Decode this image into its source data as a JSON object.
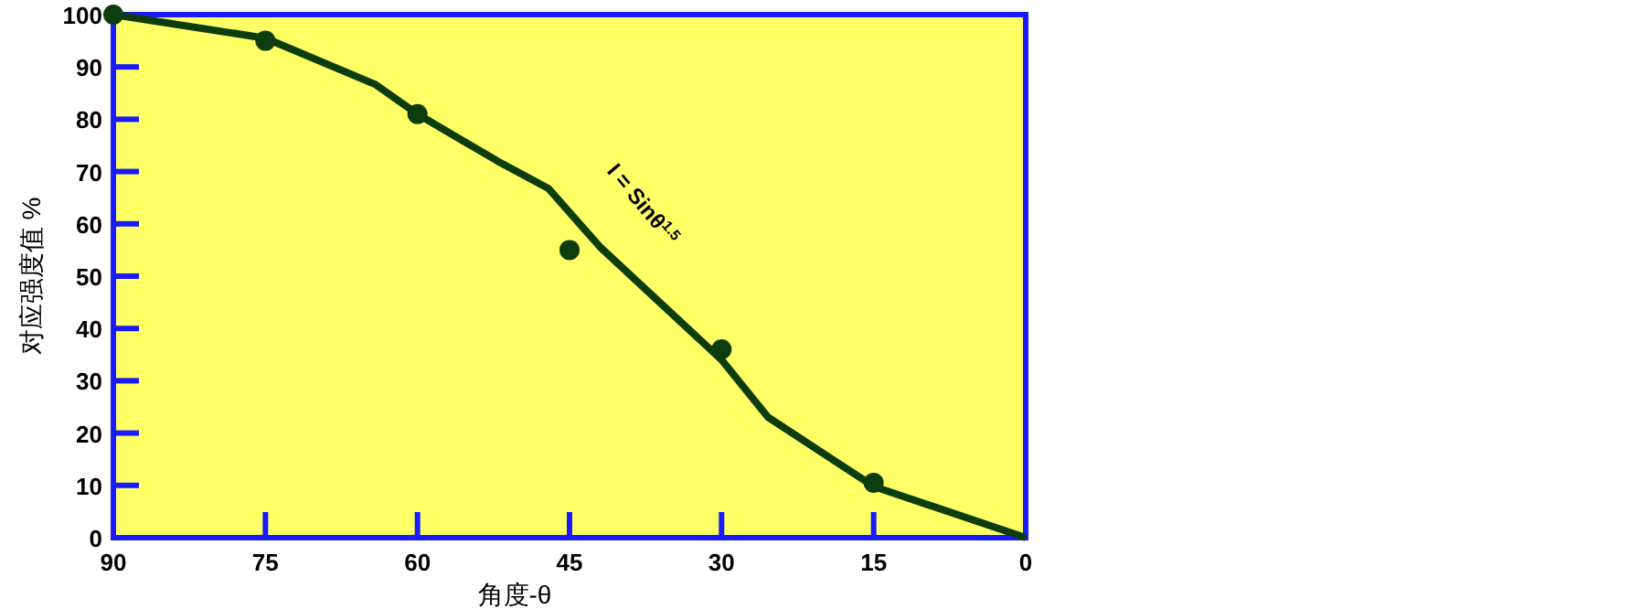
{
  "chart_data": {
    "type": "line",
    "xlabel": "角度-θ",
    "ylabel": "对应强度值 %",
    "xlim": [
      90,
      0
    ],
    "ylim": [
      0,
      100
    ],
    "xticks": [
      90,
      75,
      60,
      45,
      30,
      15,
      0
    ],
    "yticks": [
      0,
      10,
      20,
      30,
      40,
      50,
      60,
      70,
      80,
      90,
      100
    ],
    "grid": false,
    "annotations": [
      "I = Sinθ$^{1.5}$"
    ],
    "series": [
      {
        "color": "#0d3d0d",
        "marker": "none",
        "line_style": "solid",
        "x": [
          90,
          75,
          64.2,
          60,
          52.1,
          47.1,
          42,
          30,
          25.4,
          15,
          0
        ],
        "values": [
          100,
          95.5,
          86.7,
          81,
          72,
          66.8,
          55.6,
          34,
          23,
          9.8,
          0
        ]
      },
      {
        "type": "scatter",
        "color": "#0d3d0d",
        "marker": "circle",
        "x": [
          90,
          75,
          60,
          45,
          30,
          15
        ],
        "values": [
          100,
          95,
          81,
          55,
          36,
          10.5
        ]
      }
    ]
  }
}
